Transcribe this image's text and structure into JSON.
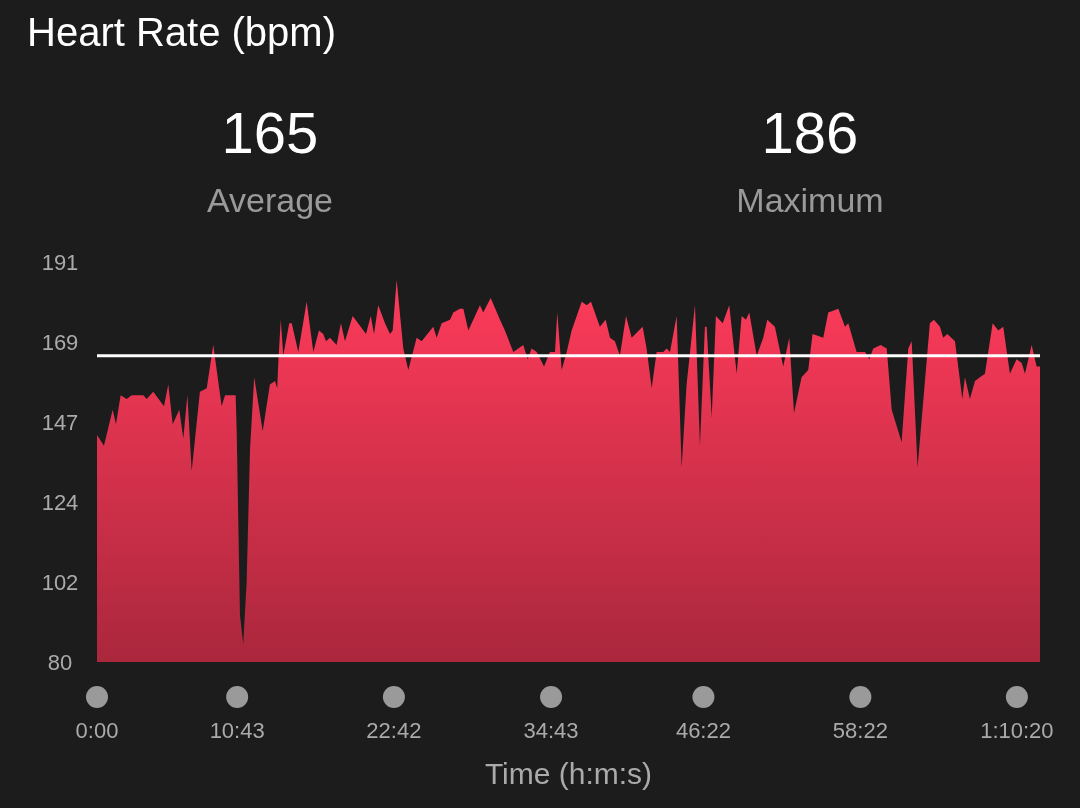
{
  "chart_data": {
    "type": "area",
    "title": "Heart Rate (bpm)",
    "xlabel": "Time (h:m:s)",
    "annotations": [
      "165",
      "Average",
      "186",
      "Maximum"
    ],
    "xlim": [
      0,
      72.1
    ],
    "xticks": [
      {
        "value": 0,
        "label": "0:00"
      },
      {
        "value": 10.7167,
        "label": "10:43"
      },
      {
        "value": 22.7,
        "label": "22:42"
      },
      {
        "value": 34.7167,
        "label": "34:43"
      },
      {
        "value": 46.3667,
        "label": "46:22"
      },
      {
        "value": 58.3667,
        "label": "58:22"
      },
      {
        "value": 70.3333,
        "label": "1:10:20"
      }
    ],
    "ylim": [
      80,
      191
    ],
    "yticks": [
      80,
      {
        "value": 102.2,
        "label": "102"
      },
      {
        "value": 124.4,
        "label": "124"
      },
      {
        "value": 146.6,
        "label": "147"
      },
      {
        "value": 168.8,
        "label": "169"
      },
      191
    ],
    "grid": false,
    "ref_lines": [
      {
        "axis": "y",
        "value": 165,
        "color": "#ffffff"
      }
    ],
    "series": [
      {
        "color": "#e23450",
        "x": [
          0,
          0.53,
          1.2,
          1.45,
          1.81,
          2.27,
          2.65,
          3.54,
          3.8,
          4.3,
          5.12,
          5.45,
          5.79,
          6.29,
          6.6,
          6.91,
          7.24,
          7.87,
          8.39,
          8.89,
          9.53,
          9.79,
          10.6,
          10.68,
          10.93,
          11.18,
          11.44,
          11.7,
          12.02,
          12.67,
          13.22,
          13.61,
          13.78,
          13.86,
          14.05,
          14.24,
          14.7,
          14.89,
          15.39,
          16.03,
          16.54,
          16.97,
          17.3,
          17.51,
          17.81,
          18.32,
          18.65,
          18.96,
          19.55,
          20.57,
          20.93,
          21.18,
          21.5,
          22.02,
          22.4,
          22.61,
          22.91,
          23.42,
          23.8,
          24.44,
          24.82,
          25.71,
          25.97,
          26.35,
          26.99,
          27.24,
          27.75,
          28.01,
          28.39,
          29.28,
          29.53,
          30.1,
          30.81,
          31.19,
          31.83,
          32.59,
          32.93,
          33.23,
          33.62,
          34.18,
          34.63,
          35.02,
          35.19,
          35.53,
          35.91,
          36.29,
          37.06,
          37.44,
          37.77,
          38.45,
          38.89,
          39.22,
          39.6,
          39.98,
          40.45,
          40.88,
          41.72,
          42.02,
          42.41,
          42.79,
          43.3,
          43.55,
          43.81,
          44.32,
          44.7,
          45.08,
          45.72,
          46.1,
          46.48,
          46.61,
          47.0,
          47.32,
          47.84,
          48.34,
          48.91,
          49.29,
          49.62,
          49.87,
          50.44,
          50.94,
          51.25,
          51.83,
          52.47,
          52.93,
          53.29,
          53.87,
          54.38,
          54.71,
          55.53,
          55.91,
          56.68,
          57.19,
          57.44,
          58.08,
          58.72,
          59.05,
          59.35,
          59.92,
          60.38,
          60.76,
          61.52,
          62.03,
          62.29,
          62.74,
          63.68,
          63.99,
          64.45,
          64.7,
          65.01,
          65.6,
          66.16,
          66.36,
          66.74,
          67.13,
          67.51,
          67.89,
          68.48,
          68.91,
          69.29,
          69.8,
          70.31,
          70.7,
          70.95,
          71.46,
          71.84,
          72.1
        ],
        "values": [
          143,
          140,
          150,
          146,
          154,
          153,
          154,
          154,
          153,
          155,
          151,
          157,
          146,
          150,
          142,
          154,
          133,
          155,
          156,
          168,
          151,
          154,
          154,
          144,
          93,
          85,
          102,
          139,
          159,
          144,
          157,
          158,
          156,
          163,
          175,
          165,
          174,
          174,
          166,
          180,
          166,
          172,
          171,
          169,
          170,
          168,
          174,
          169,
          176,
          171,
          176,
          171,
          179,
          174,
          171,
          172,
          186,
          167,
          161,
          170,
          169,
          173,
          170,
          174,
          175,
          177,
          178,
          178,
          172,
          179,
          177,
          181,
          175,
          172,
          166,
          168,
          164,
          167,
          166,
          162,
          166,
          166,
          177,
          161,
          166,
          172,
          180,
          179,
          180,
          173,
          175,
          170,
          169,
          165,
          176,
          170,
          173,
          167,
          156,
          166,
          166,
          167,
          166,
          176,
          134,
          157,
          179,
          140,
          173,
          173,
          148,
          176,
          174,
          179,
          160,
          176,
          175,
          177,
          165,
          170,
          175,
          173,
          162,
          170,
          149,
          159,
          161,
          171,
          170,
          177,
          178,
          173,
          174,
          166,
          166,
          164,
          167,
          168,
          167,
          150,
          141,
          167,
          169,
          134,
          174,
          175,
          173,
          170,
          171,
          169,
          153,
          159,
          153,
          158,
          159,
          160,
          174,
          172,
          173,
          160,
          164,
          163,
          160,
          168,
          162,
          162
        ]
      }
    ]
  }
}
